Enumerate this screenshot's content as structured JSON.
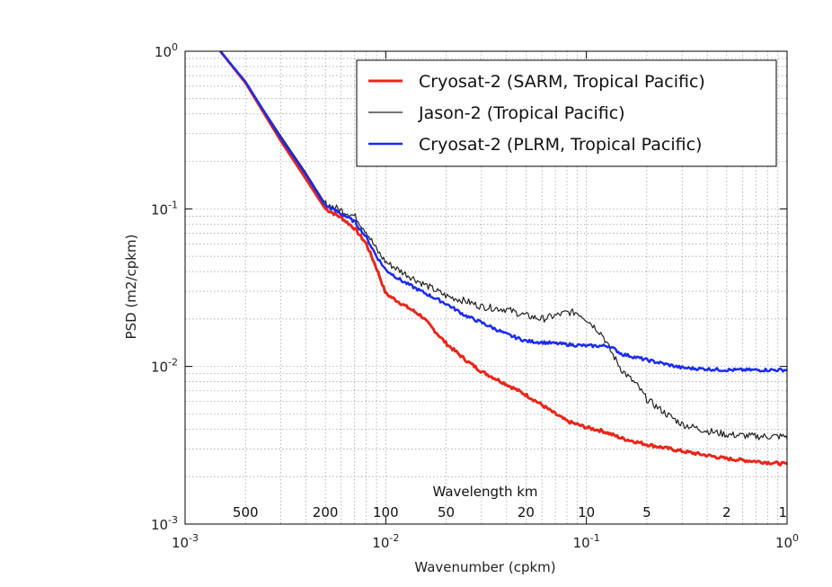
{
  "chart_data": {
    "type": "line",
    "xlabel": "Wavenumber (cpkm)",
    "ylabel": "PSD (m2/cpkm)",
    "xscale": "log",
    "yscale": "log",
    "xlim": [
      0.001,
      1
    ],
    "ylim": [
      0.001,
      1
    ],
    "grid": true,
    "legend_position": "top-right",
    "x_ticks": [
      {
        "base": "10",
        "exp": "-3"
      },
      {
        "base": "10",
        "exp": "-2"
      },
      {
        "base": "10",
        "exp": "-1"
      },
      {
        "base": "10",
        "exp": "0"
      }
    ],
    "y_ticks": [
      {
        "base": "10",
        "exp": "-3"
      },
      {
        "base": "10",
        "exp": "-2"
      },
      {
        "base": "10",
        "exp": "-1"
      },
      {
        "base": "10",
        "exp": "0"
      }
    ],
    "secondary_axis": {
      "label": "Wavelength km",
      "ticks": [
        "500",
        "200",
        "100",
        "50",
        "20",
        "10",
        "5",
        "2",
        "1"
      ],
      "tick_wavenumbers": [
        0.002,
        0.005,
        0.01,
        0.02,
        0.05,
        0.1,
        0.2,
        0.5,
        1
      ]
    },
    "series": [
      {
        "name": "Cryosat-2 (SARM, Tropical Pacific)",
        "color": "#e8261a",
        "width": 3,
        "x": [
          0.0015,
          0.002,
          0.003,
          0.004,
          0.005,
          0.006,
          0.007,
          0.008,
          0.009,
          0.01,
          0.012,
          0.015,
          0.02,
          0.025,
          0.03,
          0.04,
          0.05,
          0.06,
          0.07,
          0.08,
          0.1,
          0.12,
          0.15,
          0.2,
          0.3,
          0.5,
          0.7,
          1.0
        ],
        "y": [
          1.0,
          0.63,
          0.27,
          0.155,
          0.1,
          0.088,
          0.075,
          0.06,
          0.042,
          0.029,
          0.025,
          0.021,
          0.014,
          0.011,
          0.0093,
          0.0077,
          0.0066,
          0.0057,
          0.005,
          0.0045,
          0.0041,
          0.0039,
          0.0035,
          0.0032,
          0.0029,
          0.0026,
          0.0025,
          0.0024
        ]
      },
      {
        "name": "Jason-2 (Tropical Pacific)",
        "color": "#222222",
        "width": 1.2,
        "x": [
          0.0015,
          0.002,
          0.003,
          0.004,
          0.005,
          0.006,
          0.007,
          0.008,
          0.009,
          0.01,
          0.012,
          0.015,
          0.02,
          0.025,
          0.03,
          0.04,
          0.05,
          0.06,
          0.07,
          0.08,
          0.09,
          0.1,
          0.12,
          0.13,
          0.15,
          0.18,
          0.2,
          0.25,
          0.3,
          0.4,
          0.5,
          0.7,
          1.0
        ],
        "y": [
          1.0,
          0.64,
          0.29,
          0.17,
          0.108,
          0.098,
          0.09,
          0.072,
          0.055,
          0.046,
          0.04,
          0.034,
          0.028,
          0.026,
          0.024,
          0.023,
          0.021,
          0.02,
          0.021,
          0.022,
          0.022,
          0.02,
          0.016,
          0.013,
          0.0095,
          0.0075,
          0.0062,
          0.005,
          0.0043,
          0.0039,
          0.0037,
          0.0036,
          0.0036
        ]
      },
      {
        "name": "Cryosat-2 (PLRM, Tropical Pacific)",
        "color": "#1a2cf0",
        "width": 2.5,
        "x": [
          0.0015,
          0.002,
          0.003,
          0.004,
          0.005,
          0.006,
          0.007,
          0.008,
          0.009,
          0.01,
          0.012,
          0.015,
          0.02,
          0.025,
          0.03,
          0.04,
          0.05,
          0.07,
          0.1,
          0.13,
          0.15,
          0.2,
          0.3,
          0.5,
          0.7,
          1.0
        ],
        "y": [
          1.0,
          0.64,
          0.28,
          0.165,
          0.105,
          0.093,
          0.083,
          0.066,
          0.05,
          0.041,
          0.035,
          0.03,
          0.025,
          0.021,
          0.019,
          0.016,
          0.0145,
          0.014,
          0.0135,
          0.0135,
          0.012,
          0.011,
          0.0098,
          0.0095,
          0.0095,
          0.0095
        ]
      }
    ]
  }
}
